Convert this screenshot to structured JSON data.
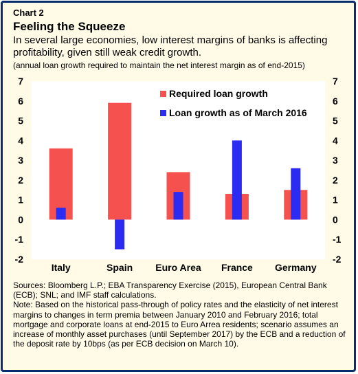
{
  "header": {
    "chart_number": "Chart 2",
    "title": "Feeling the Squeeze",
    "subtitle": "In several large economies, low interest margins of banks is affecting profitability, given still weak credit growth.",
    "unit_note": "(annual loan growth required to maintain the net interest margin as of end-2015)"
  },
  "colors": {
    "required": "#f5524f",
    "march": "#2b2bf2",
    "frame": "#0a2d6e",
    "panel_bg": "#fffbe6",
    "plot_bg": "#ffffff"
  },
  "chart_data": {
    "type": "bar",
    "categories": [
      "Italy",
      "Spain",
      "Euro Area",
      "France",
      "Germany"
    ],
    "series": [
      {
        "name": "Required loan growth",
        "values": [
          3.6,
          5.9,
          2.4,
          1.3,
          1.5
        ]
      },
      {
        "name": "Loan growth as of March 2016",
        "values": [
          0.6,
          -1.5,
          1.4,
          4.0,
          2.6
        ]
      }
    ],
    "ylim": [
      -2,
      7
    ],
    "yticks": [
      "-2",
      "-1",
      "0",
      "1",
      "2",
      "3",
      "4",
      "5",
      "6",
      "7"
    ],
    "y_axis_both_sides": true,
    "grid": false,
    "legend_position": "top-right"
  },
  "footer": {
    "sources": "Sources: Bloomberg L.P.; EBA Transparency Exercise (2015), European Central Bank (ECB); SNL; and IMF staff calculations.",
    "note": "Note: Based on the historical pass-through of policy rates and the elasticity of net interest margins to changes in term premia between January 2010 and February 2016; total mortgage and corporate loans at end-2015 to Euro Arrea residents; scenario assumes an increase of monthly asset purchases (until September 2017) by the ECB and a reduction of the deposit rate by 10bps (as per ECB decision on March 10)."
  }
}
